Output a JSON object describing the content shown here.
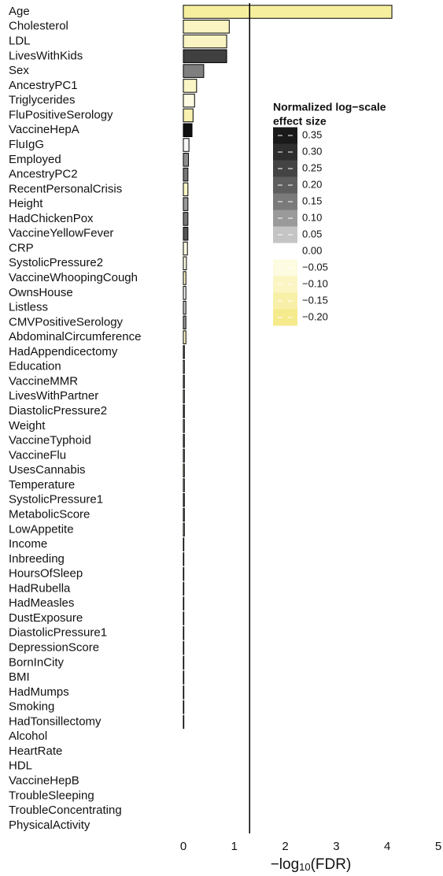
{
  "chart_data": {
    "type": "bar",
    "orientation": "horizontal",
    "categories": [
      "Age",
      "Cholesterol",
      "LDL",
      "LivesWithKids",
      "Sex",
      "AncestryPC1",
      "Triglycerides",
      "FluPositiveSerology",
      "VaccineHepA",
      "FluIgG",
      "Employed",
      "AncestryPC2",
      "RecentPersonalCrisis",
      "Height",
      "HadChickenPox",
      "VaccineYellowFever",
      "CRP",
      "SystolicPressure2",
      "VaccineWhoopingCough",
      "OwnsHouse",
      "Listless",
      "CMVPositiveSerology",
      "AbdominalCircumference",
      "HadAppendicectomy",
      "Education",
      "VaccineMMR",
      "LivesWithPartner",
      "DiastolicPressure2",
      "Weight",
      "VaccineTyphoid",
      "VaccineFlu",
      "UsesCannabis",
      "Temperature",
      "SystolicPressure1",
      "MetabolicScore",
      "LowAppetite",
      "Income",
      "Inbreeding",
      "HoursOfSleep",
      "HadRubella",
      "HadMeasles",
      "DustExposure",
      "DiastolicPressure1",
      "DepressionScore",
      "BornInCity",
      "BMI",
      "HadMumps",
      "Smoking",
      "HadTonsillectomy",
      "Alcohol",
      "HeartRate",
      "HDL",
      "VaccineHepB",
      "TroubleSleeping",
      "TroubleConcentrating",
      "PhysicalActivity"
    ],
    "values": [
      4.09,
      0.9,
      0.85,
      0.85,
      0.4,
      0.26,
      0.22,
      0.19,
      0.17,
      0.11,
      0.1,
      0.09,
      0.09,
      0.09,
      0.09,
      0.09,
      0.08,
      0.06,
      0.05,
      0.05,
      0.05,
      0.05,
      0.05,
      0.02,
      0.02,
      0.02,
      0.02,
      0.02,
      0.02,
      0.02,
      0.02,
      0.02,
      0.02,
      0.02,
      0.02,
      0.02,
      0.01,
      0.01,
      0.01,
      0.01,
      0.01,
      0.01,
      0.01,
      0.01,
      0.01,
      0.01,
      0.01,
      0.01,
      0.01,
      0,
      0,
      0,
      0,
      0,
      0,
      0
    ],
    "colors": [
      "#f6ef9e",
      "#faf4c2",
      "#faf4c2",
      "#404040",
      "#7f7f7f",
      "#fbf6c6",
      "#fdfbe2",
      "#f8f1b0",
      "#111111",
      "#f6f6f6",
      "#8f8f8f",
      "#777777",
      "#fbf6c6",
      "#9a9a9a",
      "#777777",
      "#555555",
      "#fdfbe2",
      "#fdfbe2",
      "#fbf6c6",
      "#f2f2f2",
      "#cccccc",
      "#999999",
      "#fbf6c6",
      "#888888",
      "#f2f2f2",
      "#aaaaaa",
      "#fdfbe2",
      "#777777",
      "#f2f2f2",
      "#999999",
      "#cccccc",
      "#fbf6c6",
      "#f2f2f2",
      "#888888",
      "#aaaaaa",
      "#fdfbe2",
      "#f2f2f2",
      "#999999",
      "#cccccc",
      "#f2f2f2",
      "#888888",
      "#fbf6c6",
      "#aaaaaa",
      "#f2f2f2",
      "#999999",
      "#777777",
      "#f2f2f2",
      "#cccccc",
      "#888888",
      "#f2f2f2",
      "#f2f2f2",
      "#f2f2f2",
      "#f2f2f2",
      "#f2f2f2",
      "#f2f2f2",
      "#f2f2f2"
    ],
    "xlim": [
      0,
      5
    ],
    "xticks": [
      0,
      1,
      2,
      3,
      4,
      5
    ],
    "threshold": 1.3,
    "xlabel": [
      "−log",
      "10",
      "(FDR)"
    ],
    "legend": {
      "title": [
        "Normalized log−scale",
        "effect size"
      ],
      "ticks": [
        0.35,
        {
          "value": 0.3,
          "label": "0.30"
        },
        0.25,
        {
          "value": 0.2,
          "label": "0.20"
        },
        0.15,
        {
          "value": 0.1,
          "label": "0.10"
        },
        0.05,
        {
          "value": 0,
          "label": "0.00"
        },
        {
          "value": -0.05,
          "label": "−0.05"
        },
        {
          "value": -0.1,
          "label": "−0.10"
        },
        {
          "value": -0.15,
          "label": "−0.15"
        },
        {
          "value": -0.2,
          "label": "−0.20"
        }
      ],
      "colors": [
        "#1a1a1a",
        "#2e2e2e",
        "#444444",
        "#5e5e5e",
        "#7a7a7a",
        "#9a9a9a",
        "#c4c4c4",
        "#ffffff",
        "#fdfbe0",
        "#fbf5c4",
        "#f8f0a8",
        "#f5ea8c"
      ]
    }
  }
}
